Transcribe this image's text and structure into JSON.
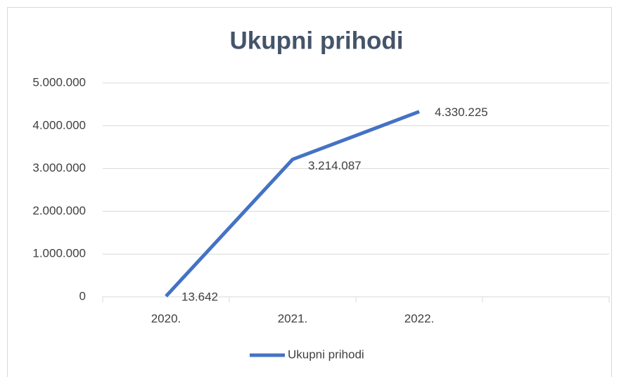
{
  "chart_data": {
    "type": "line",
    "title": "Ukupni prihodi",
    "categories": [
      "2020.",
      "2021.",
      "2022.",
      null
    ],
    "series": [
      {
        "name": "Ukupni prihodi",
        "color": "#4472c4",
        "values": [
          13642,
          3214087,
          4330225,
          null
        ],
        "value_labels": [
          "13.642",
          "3.214.087",
          "4.330.225",
          null
        ]
      }
    ],
    "ylim": [
      0,
      5000000
    ],
    "yticks": [
      0,
      {
        "value": 1000000,
        "label": "1.000.000"
      },
      {
        "value": 2000000,
        "label": "2.000.000"
      },
      {
        "value": 3000000,
        "label": "3.000.000"
      },
      {
        "value": 4000000,
        "label": "4.000.000"
      },
      {
        "value": 5000000,
        "label": "5.000.000"
      }
    ],
    "grid": true,
    "legend": "bottom"
  }
}
